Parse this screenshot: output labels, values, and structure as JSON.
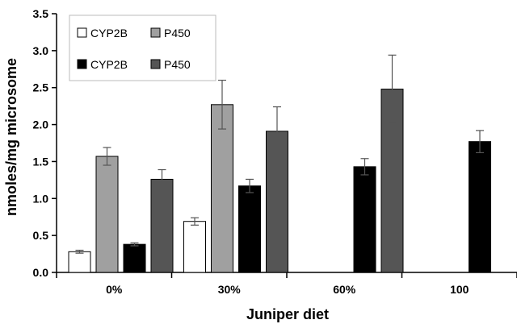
{
  "chart_data": {
    "type": "bar",
    "categories": [
      "0%",
      "30%",
      "60%",
      "100"
    ],
    "xlabel": "Juniper diet",
    "ylabel": "nmoles/mg microsome",
    "ylim": [
      0,
      3.5
    ],
    "yticks": [
      "0.0",
      "0.5",
      "1.0",
      "1.5",
      "2.0",
      "2.5",
      "3.0",
      "3.5"
    ],
    "grid": false,
    "legend_position": "top-left",
    "series": [
      {
        "name": "CYP2B",
        "color": "#ffffff",
        "values": [
          0.28,
          0.69,
          null,
          null
        ],
        "errors": [
          0.02,
          0.05,
          null,
          null
        ]
      },
      {
        "name": "P450",
        "color": "#a0a0a0",
        "values": [
          1.57,
          2.27,
          null,
          null
        ],
        "errors": [
          0.12,
          0.33,
          null,
          null
        ]
      },
      {
        "name": "CYP2B",
        "color": "#000000",
        "values": [
          0.38,
          1.17,
          1.43,
          1.77
        ],
        "errors": [
          0.02,
          0.09,
          0.11,
          0.15
        ]
      },
      {
        "name": "P450",
        "color": "#555555",
        "values": [
          1.26,
          1.91,
          2.48,
          null
        ],
        "errors": [
          0.13,
          0.33,
          0.46,
          null
        ]
      }
    ]
  }
}
